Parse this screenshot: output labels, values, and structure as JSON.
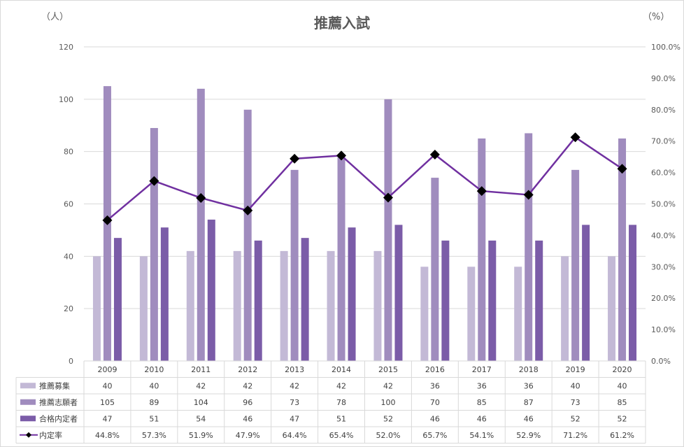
{
  "chart_data": {
    "type": "bar",
    "title": "推薦入試",
    "left_unit": "（人）",
    "right_unit": "（%）",
    "categories": [
      "2009",
      "2010",
      "2011",
      "2012",
      "2013",
      "2014",
      "2015",
      "2016",
      "2017",
      "2018",
      "2019",
      "2020"
    ],
    "ylim": [
      0,
      120
    ],
    "y_ticks": [
      "0",
      "20",
      "40",
      "60",
      "80",
      "100",
      "120"
    ],
    "y2lim": [
      0,
      100
    ],
    "y2_ticks": [
      "0.0%",
      "10.0%",
      "20.0%",
      "30.0%",
      "40.0%",
      "50.0%",
      "60.0%",
      "70.0%",
      "80.0%",
      "90.0%",
      "100.0%"
    ],
    "grid": true,
    "legend": "data-table",
    "series": [
      {
        "name": "推薦募集",
        "type": "bar",
        "axis": "left",
        "color": "#c3b9d6",
        "values": [
          40,
          40,
          42,
          42,
          42,
          42,
          42,
          36,
          36,
          36,
          40,
          40
        ]
      },
      {
        "name": "推薦志願者",
        "type": "bar",
        "axis": "left",
        "color": "#a08cbe",
        "values": [
          105,
          89,
          104,
          96,
          73,
          78,
          100,
          70,
          85,
          87,
          73,
          85
        ]
      },
      {
        "name": "合格内定者",
        "type": "bar",
        "axis": "left",
        "color": "#7b5ca8",
        "values": [
          47,
          51,
          54,
          46,
          47,
          51,
          52,
          46,
          46,
          46,
          52,
          52
        ]
      },
      {
        "name": "内定率",
        "type": "line",
        "axis": "right",
        "color": "#7030a0",
        "marker": "diamond",
        "values": [
          44.8,
          57.3,
          51.9,
          47.9,
          64.4,
          65.4,
          52.0,
          65.7,
          54.1,
          52.9,
          71.2,
          61.2
        ],
        "labels": [
          "44.8%",
          "57.3%",
          "51.9%",
          "47.9%",
          "64.4%",
          "65.4%",
          "52.0%",
          "65.7%",
          "54.1%",
          "52.9%",
          "71.2%",
          "61.2%"
        ]
      }
    ]
  }
}
